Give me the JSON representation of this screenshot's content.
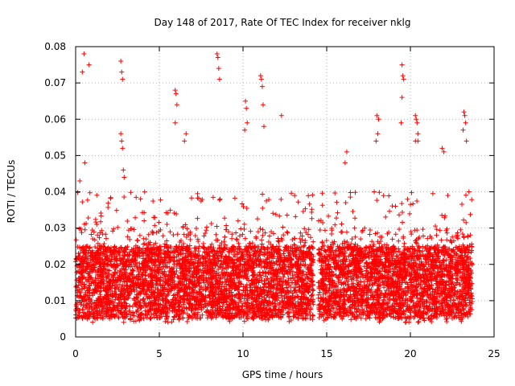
{
  "chart_data": {
    "type": "scatter",
    "title": "Day 148 of 2017, Rate Of TEC Index for receiver nklg",
    "xlabel": "GPS time / hours",
    "ylabel": "ROTI / TECUs",
    "xlim": [
      0,
      25
    ],
    "ylim": [
      0,
      0.08
    ],
    "x_ticks": [
      0,
      5,
      10,
      15,
      20,
      25
    ],
    "y_ticks": [
      0,
      0.01,
      0.02,
      0.03,
      0.04,
      0.05,
      0.06,
      0.07,
      0.08
    ],
    "x_tick_labels": [
      "0",
      "5",
      "10",
      "15",
      "20",
      "25"
    ],
    "y_tick_labels": [
      "0",
      "0.01",
      "0.02",
      "0.03",
      "0.04",
      "0.05",
      "0.06",
      "0.07",
      "0.08"
    ],
    "marker": "+",
    "series_color": "#ff0000",
    "data_gap_hours": [
      14.2,
      14.5
    ],
    "dense_band": {
      "x_range": [
        0,
        23.7
      ],
      "y_range": [
        0.003,
        0.035
      ],
      "note": "thousands of overlapping points densely concentrated between 0.005 and 0.025"
    },
    "points": [
      [
        0.25,
        0.043
      ],
      [
        0.4,
        0.073
      ],
      [
        0.5,
        0.078
      ],
      [
        0.55,
        0.048
      ],
      [
        0.8,
        0.075
      ],
      [
        2.7,
        0.076
      ],
      [
        2.75,
        0.073
      ],
      [
        2.8,
        0.071
      ],
      [
        2.7,
        0.056
      ],
      [
        2.75,
        0.054
      ],
      [
        2.8,
        0.052
      ],
      [
        2.85,
        0.046
      ],
      [
        2.9,
        0.044
      ],
      [
        5.95,
        0.068
      ],
      [
        6.0,
        0.067
      ],
      [
        6.05,
        0.064
      ],
      [
        5.95,
        0.059
      ],
      [
        6.6,
        0.056
      ],
      [
        6.5,
        0.054
      ],
      [
        8.45,
        0.078
      ],
      [
        8.5,
        0.077
      ],
      [
        8.55,
        0.074
      ],
      [
        8.6,
        0.071
      ],
      [
        10.15,
        0.065
      ],
      [
        10.2,
        0.063
      ],
      [
        10.25,
        0.059
      ],
      [
        10.1,
        0.057
      ],
      [
        11.05,
        0.072
      ],
      [
        11.1,
        0.071
      ],
      [
        11.15,
        0.069
      ],
      [
        11.2,
        0.064
      ],
      [
        11.25,
        0.058
      ],
      [
        12.3,
        0.061
      ],
      [
        16.2,
        0.051
      ],
      [
        16.1,
        0.048
      ],
      [
        18.0,
        0.061
      ],
      [
        18.1,
        0.06
      ],
      [
        18.05,
        0.056
      ],
      [
        17.95,
        0.054
      ],
      [
        19.5,
        0.075
      ],
      [
        19.55,
        0.072
      ],
      [
        19.6,
        0.071
      ],
      [
        19.5,
        0.066
      ],
      [
        19.45,
        0.059
      ],
      [
        20.3,
        0.061
      ],
      [
        20.35,
        0.06
      ],
      [
        20.4,
        0.059
      ],
      [
        20.45,
        0.056
      ],
      [
        20.3,
        0.054
      ],
      [
        20.45,
        0.054
      ],
      [
        21.9,
        0.052
      ],
      [
        22.0,
        0.051
      ],
      [
        23.2,
        0.062
      ],
      [
        23.25,
        0.061
      ],
      [
        23.3,
        0.059
      ],
      [
        23.15,
        0.057
      ],
      [
        23.35,
        0.054
      ],
      [
        23.5,
        0.04
      ]
    ]
  }
}
